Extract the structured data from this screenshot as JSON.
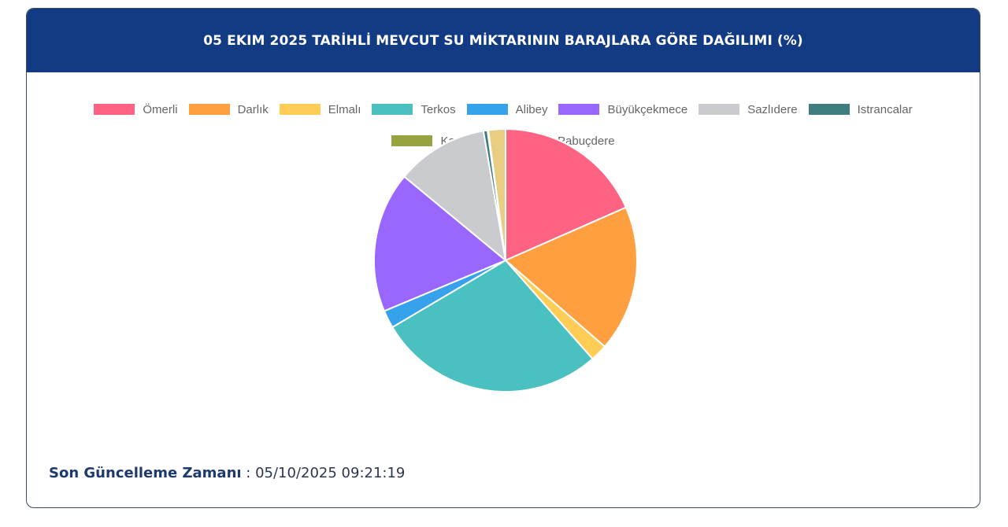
{
  "header": {
    "title": "05 EKIM 2025 TARİHLİ MEVCUT SU MİKTARININ BARAJLARA GÖRE DAĞILIMI (%)"
  },
  "legend": [
    {
      "label": "Ömerli",
      "color": "#ff6384"
    },
    {
      "label": "Darlık",
      "color": "#ff9f40"
    },
    {
      "label": "Elmalı",
      "color": "#ffcd56"
    },
    {
      "label": "Terkos",
      "color": "#4bc0c0"
    },
    {
      "label": "Alibey",
      "color": "#36a2eb"
    },
    {
      "label": "Büyükçekmece",
      "color": "#9966ff"
    },
    {
      "label": "Sazlıdere",
      "color": "#c9cbcf"
    },
    {
      "label": "Istrancalar",
      "color": "#3f7d7e"
    },
    {
      "label": "Kazandere",
      "color": "#98a23e"
    },
    {
      "label": "Pabuçdere",
      "color": "#e8cd82"
    }
  ],
  "footer": {
    "label": "Son Güncelleme Zamanı",
    "separator": " : ",
    "value": "05/10/2025 09:21:19"
  },
  "chart_data": {
    "type": "pie",
    "title": "05 EKIM 2025 TARİHLİ MEVCUT SU MİKTARININ BARAJLARA GÖRE DAĞILIMI (%)",
    "categories": [
      "Ömerli",
      "Darlık",
      "Elmalı",
      "Terkos",
      "Alibey",
      "Büyükçekmece",
      "Sazlıdere",
      "Istrancalar",
      "Kazandere",
      "Pabuçdere"
    ],
    "values": [
      18.4,
      18.0,
      2.1,
      28.0,
      2.2,
      17.3,
      11.3,
      0.5,
      0.1,
      2.1
    ],
    "colors": [
      "#ff6384",
      "#ff9f40",
      "#ffcd56",
      "#4bc0c0",
      "#36a2eb",
      "#9966ff",
      "#c9cbcf",
      "#3f7d7e",
      "#98a23e",
      "#e8cd82"
    ],
    "legend_position": "top",
    "start_angle_deg": 0,
    "direction": "clockwise"
  }
}
